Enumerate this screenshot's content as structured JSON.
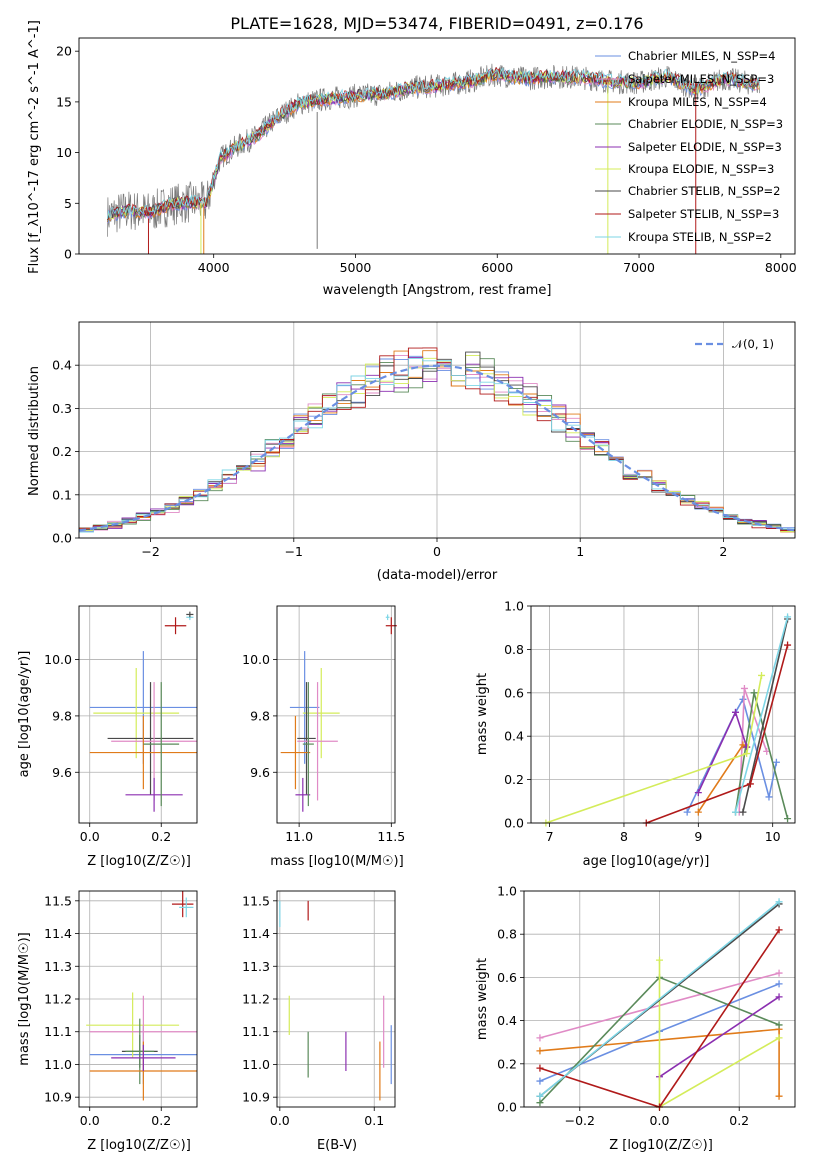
{
  "title": "PLATE=1628, MJD=53474, FIBERID=0491, z=0.176",
  "chart_data": [
    {
      "id": "spectrum",
      "type": "line",
      "xlabel": "wavelength [Angstrom, rest frame]",
      "ylabel": "Flux [f_λ10^-17 erg cm^-2 s^-1 A^-1]",
      "xlim": [
        3050,
        8100
      ],
      "ylim": [
        0,
        21.3
      ],
      "xticks": [
        "4000",
        "5000",
        "6000",
        "7000",
        "8000"
      ],
      "yticks": [
        "0",
        "5",
        "10",
        "15",
        "20"
      ],
      "grid": false,
      "legend_position": "top-right",
      "continuum": {
        "x": [
          3250,
          3400,
          3550,
          3700,
          3850,
          3950,
          4050,
          4150,
          4300,
          4450,
          4600,
          4800,
          5000,
          5200,
          5400,
          5600,
          5800,
          6000,
          6200,
          6400,
          6600,
          6800,
          7000,
          7200,
          7400,
          7600,
          7800
        ],
        "y": [
          3.8,
          4.3,
          4.1,
          4.9,
          5.1,
          5.0,
          9.5,
          10.5,
          11.6,
          13.5,
          14.8,
          15.3,
          15.6,
          15.8,
          16.4,
          16.6,
          17.0,
          17.7,
          17.3,
          17.5,
          17.4,
          17.0,
          16.9,
          17.5,
          16.2,
          17.3,
          16.8
        ]
      },
      "series": [
        {
          "name": "Chabrier MILES, N_SSP=4",
          "color": "#6a8fe2"
        },
        {
          "name": "Salpeter MILES, N_SSP=3",
          "color": "#e08bc6"
        },
        {
          "name": "Kroupa MILES, N_SSP=4",
          "color": "#e07b1a"
        },
        {
          "name": "Chabrier ELODIE, N_SSP=3",
          "color": "#5a8a5a"
        },
        {
          "name": "Salpeter ELODIE, N_SSP=3",
          "color": "#8b2fb0"
        },
        {
          "name": "Kroupa ELODIE, N_SSP=3",
          "color": "#d4ec5a"
        },
        {
          "name": "Chabrier STELIB, N_SSP=2",
          "color": "#4a4a4a"
        },
        {
          "name": "Salpeter STELIB, N_SSP=3",
          "color": "#b01a1a"
        },
        {
          "name": "Kroupa STELIB, N_SSP=2",
          "color": "#7ed6e6"
        }
      ]
    },
    {
      "id": "residuals",
      "type": "histogram",
      "xlabel": "(data-model)/error",
      "ylabel": "Normed distribution",
      "xlim": [
        -2.5,
        2.5
      ],
      "ylim": [
        0,
        0.5
      ],
      "xticks": [
        "−2",
        "−1",
        "0",
        "1",
        "2"
      ],
      "yticks": [
        "0.0",
        "0.1",
        "0.2",
        "0.3",
        "0.4"
      ],
      "grid": true,
      "legend": "𝒩(0, 1)",
      "legend_position": "top-right",
      "reference": {
        "name": "N(0,1)",
        "mean": 0,
        "sigma": 1,
        "color": "#6a8fe2",
        "style": "dashed"
      },
      "bin_width": 0.1
    },
    {
      "id": "age-vs-Z",
      "type": "errorbar",
      "xlabel": "Z [log10(Z/Z☉)]",
      "ylabel": "age  [log10(age/yr)]",
      "xlim": [
        -0.03,
        0.3
      ],
      "ylim": [
        9.42,
        10.19
      ],
      "xticks": [
        "0.0",
        "0.2"
      ],
      "yticks": [
        "9.6",
        "9.8",
        "10.0"
      ],
      "grid": true,
      "points": [
        {
          "x": 0.15,
          "y": 9.83,
          "xerr": 0.15,
          "yerr": 0.2,
          "c": "#6a8fe2"
        },
        {
          "x": 0.13,
          "y": 9.81,
          "xerr": 0.12,
          "yerr": 0.16,
          "c": "#d4ec5a"
        },
        {
          "x": 0.17,
          "y": 9.72,
          "xerr": 0.12,
          "yerr": 0.2,
          "c": "#4a4a4a"
        },
        {
          "x": 0.18,
          "y": 9.71,
          "xerr": 0.12,
          "yerr": 0.21,
          "c": "#e08bc6"
        },
        {
          "x": 0.15,
          "y": 9.67,
          "xerr": 0.15,
          "yerr": 0.13,
          "c": "#e07b1a"
        },
        {
          "x": 0.18,
          "y": 9.52,
          "xerr": 0.08,
          "yerr": 0.06,
          "c": "#8b2fb0"
        },
        {
          "x": 0.2,
          "y": 9.7,
          "xerr": 0.05,
          "yerr": 0.22,
          "c": "#5a8a5a"
        },
        {
          "x": 0.24,
          "y": 10.12,
          "xerr": 0.03,
          "yerr": 0.03,
          "c": "#b01a1a"
        },
        {
          "x": 0.28,
          "y": 10.15,
          "xerr": 0.01,
          "yerr": 0.01,
          "c": "#7ed6e6"
        },
        {
          "x": 0.28,
          "y": 10.16,
          "xerr": 0.01,
          "yerr": 0.01,
          "c": "#4a4a4a"
        }
      ]
    },
    {
      "id": "age-vs-mass",
      "type": "errorbar",
      "xlabel": "mass [log10(M/M☉)]",
      "ylabel": "",
      "xlim": [
        10.88,
        11.52
      ],
      "ylim": [
        9.42,
        10.19
      ],
      "xticks": [
        "11.0",
        "11.5"
      ],
      "yticks": [
        "9.6",
        "9.8",
        "10.0"
      ],
      "grid": true,
      "points": [
        {
          "x": 11.03,
          "y": 9.83,
          "xerr": 0.08,
          "yerr": 0.2,
          "c": "#6a8fe2"
        },
        {
          "x": 11.12,
          "y": 9.81,
          "xerr": 0.1,
          "yerr": 0.16,
          "c": "#d4ec5a"
        },
        {
          "x": 11.04,
          "y": 9.72,
          "xerr": 0.05,
          "yerr": 0.2,
          "c": "#4a4a4a"
        },
        {
          "x": 11.1,
          "y": 9.71,
          "xerr": 0.11,
          "yerr": 0.21,
          "c": "#e08bc6"
        },
        {
          "x": 10.98,
          "y": 9.67,
          "xerr": 0.08,
          "yerr": 0.13,
          "c": "#e07b1a"
        },
        {
          "x": 11.02,
          "y": 9.52,
          "xerr": 0.04,
          "yerr": 0.06,
          "c": "#8b2fb0"
        },
        {
          "x": 11.05,
          "y": 9.7,
          "xerr": 0.03,
          "yerr": 0.22,
          "c": "#5a8a5a"
        },
        {
          "x": 11.5,
          "y": 10.12,
          "xerr": 0.03,
          "yerr": 0.03,
          "c": "#b01a1a"
        },
        {
          "x": 11.48,
          "y": 10.15,
          "xerr": 0.01,
          "yerr": 0.01,
          "c": "#7ed6e6"
        }
      ]
    },
    {
      "id": "weight-vs-age",
      "type": "line",
      "xlabel": "age  [log10(age/yr)]",
      "ylabel": "mass weight",
      "xlim": [
        6.75,
        10.3
      ],
      "ylim": [
        0,
        1
      ],
      "xticks": [
        "7",
        "8",
        "9",
        "10"
      ],
      "yticks": [
        "0.0",
        "0.2",
        "0.4",
        "0.6",
        "0.8",
        "1.0"
      ],
      "grid": true,
      "series": [
        {
          "c": "#6a8fe2",
          "x": [
            8.85,
            9.5,
            9.6,
            9.95,
            10.05
          ],
          "y": [
            0.05,
            0.51,
            0.57,
            0.12,
            0.28
          ]
        },
        {
          "c": "#e08bc6",
          "x": [
            9.55,
            9.62,
            9.92
          ],
          "y": [
            0.05,
            0.62,
            0.33
          ]
        },
        {
          "c": "#e07b1a",
          "x": [
            9.0,
            9.6,
            9.65
          ],
          "y": [
            0.05,
            0.36,
            0.35
          ]
        },
        {
          "c": "#5a8a5a",
          "x": [
            9.5,
            9.75,
            10.2
          ],
          "y": [
            0.05,
            0.6,
            0.02
          ]
        },
        {
          "c": "#8b2fb0",
          "x": [
            9.0,
            9.5,
            9.65
          ],
          "y": [
            0.14,
            0.51,
            0.35
          ]
        },
        {
          "c": "#d4ec5a",
          "x": [
            6.95,
            9.65,
            9.85
          ],
          "y": [
            0.0,
            0.32,
            0.68
          ]
        },
        {
          "c": "#4a4a4a",
          "x": [
            9.6,
            10.2
          ],
          "y": [
            0.05,
            0.94
          ]
        },
        {
          "c": "#b01a1a",
          "x": [
            8.3,
            9.7,
            10.2
          ],
          "y": [
            0.0,
            0.18,
            0.82
          ]
        },
        {
          "c": "#7ed6e6",
          "x": [
            9.5,
            10.2
          ],
          "y": [
            0.05,
            0.95
          ]
        }
      ]
    },
    {
      "id": "mass-vs-Z",
      "type": "errorbar",
      "xlabel": "Z [log10(Z/Z☉)]",
      "ylabel": "mass [log10(M/M☉)]",
      "xlim": [
        -0.03,
        0.3
      ],
      "ylim": [
        10.87,
        11.53
      ],
      "xticks": [
        "0.0",
        "0.2"
      ],
      "yticks": [
        "10.9",
        "11.0",
        "11.1",
        "11.2",
        "11.3",
        "11.4",
        "11.5"
      ],
      "grid": true,
      "points": [
        {
          "x": 0.15,
          "y": 11.03,
          "xerr": 0.15,
          "yerr": 0.09,
          "c": "#6a8fe2"
        },
        {
          "x": 0.12,
          "y": 11.12,
          "xerr": 0.13,
          "yerr": 0.1,
          "c": "#d4ec5a"
        },
        {
          "x": 0.15,
          "y": 11.1,
          "xerr": 0.15,
          "yerr": 0.11,
          "c": "#e08bc6"
        },
        {
          "x": 0.14,
          "y": 11.04,
          "xerr": 0.05,
          "yerr": 0.05,
          "c": "#4a4a4a"
        },
        {
          "x": 0.14,
          "y": 11.04,
          "xerr": 0.04,
          "yerr": 0.1,
          "c": "#5a8a5a"
        },
        {
          "x": 0.15,
          "y": 10.98,
          "xerr": 0.15,
          "yerr": 0.09,
          "c": "#e07b1a"
        },
        {
          "x": 0.15,
          "y": 11.02,
          "xerr": 0.09,
          "yerr": 0.04,
          "c": "#8b2fb0"
        },
        {
          "x": 0.26,
          "y": 11.49,
          "xerr": 0.03,
          "yerr": 0.04,
          "c": "#b01a1a"
        },
        {
          "x": 0.27,
          "y": 11.48,
          "xerr": 0.02,
          "yerr": 0.03,
          "c": "#7ed6e6"
        }
      ]
    },
    {
      "id": "mass-vs-EBV",
      "type": "errorbar",
      "xlabel": "E(B-V)",
      "ylabel": "",
      "xlim": [
        -0.003,
        0.122
      ],
      "ylim": [
        10.87,
        11.53
      ],
      "xticks": [
        "0.0",
        "0.1"
      ],
      "yticks": [
        "10.9",
        "11.0",
        "11.1",
        "11.2",
        "11.3",
        "11.4",
        "11.5"
      ],
      "grid": true,
      "points": [
        {
          "x": 0.118,
          "y": 11.03,
          "xerr": 0,
          "yerr": 0.09,
          "c": "#6a8fe2"
        },
        {
          "x": 0.01,
          "y": 11.15,
          "xerr": 0,
          "yerr": 0.06,
          "c": "#d4ec5a"
        },
        {
          "x": 0.11,
          "y": 11.1,
          "xerr": 0,
          "yerr": 0.11,
          "c": "#e08bc6"
        },
        {
          "x": 0.03,
          "y": 11.03,
          "xerr": 0,
          "yerr": 0.07,
          "c": "#5a8a5a"
        },
        {
          "x": 0.106,
          "y": 10.98,
          "xerr": 0,
          "yerr": 0.09,
          "c": "#e07b1a"
        },
        {
          "x": 0.07,
          "y": 11.04,
          "xerr": 0,
          "yerr": 0.06,
          "c": "#8b2fb0"
        },
        {
          "x": 0.03,
          "y": 11.47,
          "xerr": 0,
          "yerr": 0.03,
          "c": "#b01a1a"
        },
        {
          "x": 0.0,
          "y": 11.46,
          "xerr": 0,
          "yerr": 0.04,
          "c": "#7ed6e6"
        }
      ]
    },
    {
      "id": "weight-vs-Z",
      "type": "line",
      "xlabel": "Z [log10(Z/Z☉)]",
      "ylabel": "mass weight",
      "xlim": [
        -0.34,
        0.34
      ],
      "ylim": [
        0,
        1
      ],
      "xticks": [
        "−0.2",
        "0.0",
        "0.2"
      ],
      "yticks": [
        "0.0",
        "0.2",
        "0.4",
        "0.6",
        "0.8",
        "1.0"
      ],
      "grid": true,
      "series": [
        {
          "c": "#6a8fe2",
          "x": [
            -0.3,
            0.0,
            0.3
          ],
          "y": [
            0.12,
            0.35,
            0.57
          ]
        },
        {
          "c": "#e08bc6",
          "x": [
            -0.3,
            0.3
          ],
          "y": [
            0.32,
            0.62
          ]
        },
        {
          "c": "#e07b1a",
          "x": [
            -0.3,
            0.3,
            0.3
          ],
          "y": [
            0.26,
            0.36,
            0.05
          ]
        },
        {
          "c": "#5a8a5a",
          "x": [
            -0.3,
            0.0,
            0.3
          ],
          "y": [
            0.02,
            0.6,
            0.38
          ]
        },
        {
          "c": "#8b2fb0",
          "x": [
            0.0,
            0.3
          ],
          "y": [
            0.14,
            0.51
          ]
        },
        {
          "c": "#d4ec5a",
          "x": [
            0.0,
            0.0,
            0.3
          ],
          "y": [
            0.68,
            0.0,
            0.32
          ]
        },
        {
          "c": "#4a4a4a",
          "x": [
            -0.3,
            0.3
          ],
          "y": [
            0.05,
            0.94
          ]
        },
        {
          "c": "#b01a1a",
          "x": [
            -0.3,
            0.0,
            0.3
          ],
          "y": [
            0.18,
            0.0,
            0.82
          ]
        },
        {
          "c": "#7ed6e6",
          "x": [
            -0.3,
            0.3
          ],
          "y": [
            0.05,
            0.95
          ]
        }
      ]
    }
  ]
}
